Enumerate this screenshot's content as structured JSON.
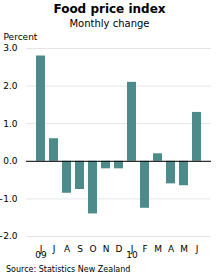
{
  "chart_data": {
    "type": "bar",
    "title": "Food price index",
    "subtitle": "Monthly change",
    "y_label": "Percent",
    "source": "Source: Statistics New Zealand",
    "categories": [
      "J",
      "J",
      "A",
      "S",
      "O",
      "N",
      "D",
      "J",
      "F",
      "M",
      "A",
      "M",
      "J"
    ],
    "values": [
      2.8,
      0.6,
      -0.85,
      -0.75,
      -1.4,
      -0.2,
      -0.2,
      2.1,
      -1.25,
      0.2,
      -0.6,
      -0.65,
      1.3
    ],
    "color": "#4d8a8a",
    "annotations": [
      {
        "text": "09",
        "x": 0
      },
      {
        "text": "10",
        "x": 7
      }
    ],
    "ylim": [
      -2,
      3
    ],
    "yticks": [
      -2,
      -1,
      0,
      1,
      2,
      3
    ],
    "grid": true
  }
}
